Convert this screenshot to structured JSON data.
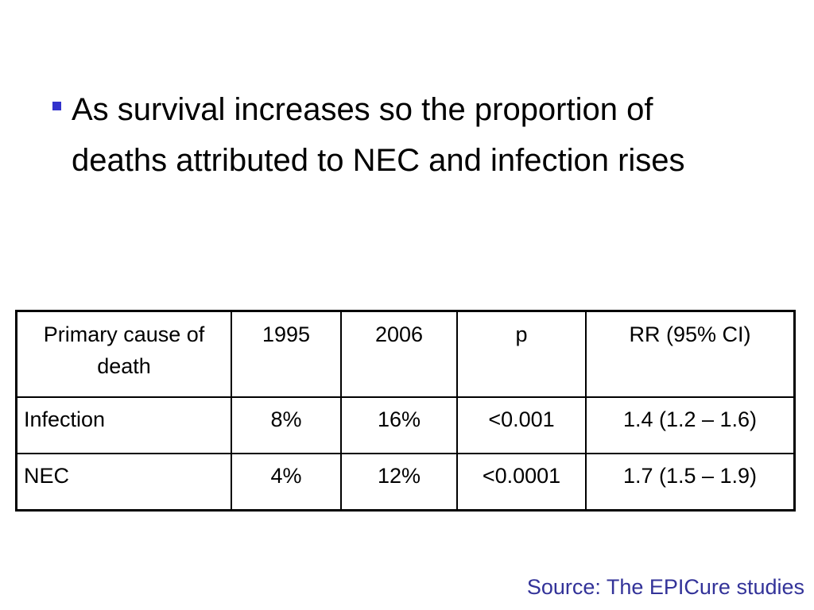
{
  "bullet": {
    "text": "As survival increases so the proportion of deaths attributed to NEC and infection rises",
    "marker_color": "#3333cc"
  },
  "table": {
    "headers": [
      "Primary cause of death",
      "1995",
      "2006",
      "p",
      "RR (95% CI)"
    ],
    "rows": [
      [
        "Infection",
        "8%",
        "16%",
        "<0.001",
        "1.4 (1.2 – 1.6)"
      ],
      [
        "NEC",
        "4%",
        "12%",
        "<0.0001",
        "1.7 (1.5 – 1.9)"
      ]
    ]
  },
  "source": {
    "text": "Source: The EPICure studies",
    "color": "#333399"
  }
}
